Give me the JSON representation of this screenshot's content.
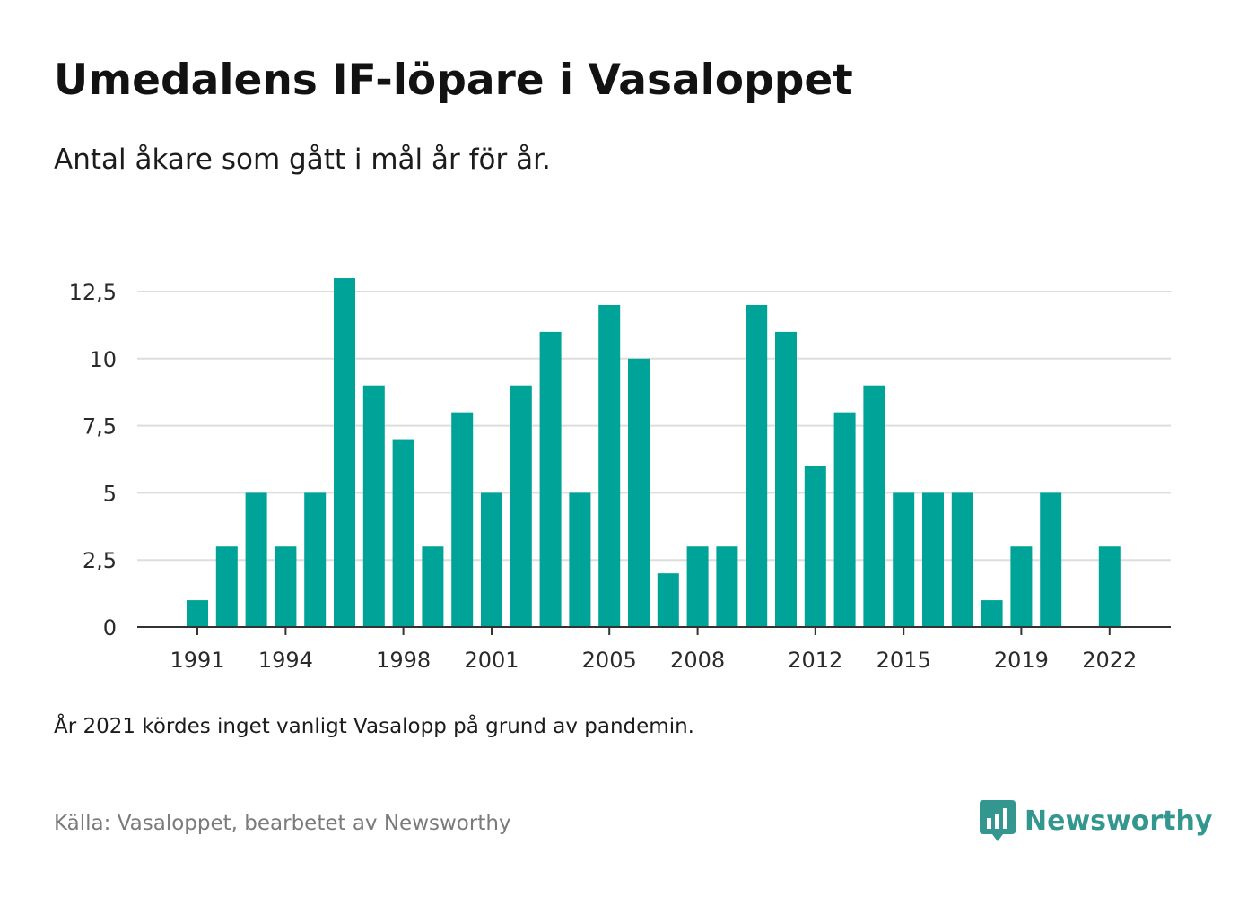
{
  "title": "Umedalens IF-löpare i Vasaloppet",
  "subtitle": "Antal åkare som gått i mål år för år.",
  "note": "År 2021 kördes inget vanligt Vasalopp på grund av pandemin.",
  "source": "Källa: Vasaloppet, bearbetet av Newsworthy",
  "brand": {
    "name": "Newsworthy",
    "icon": "newsworthy-logo-icon",
    "color": "#33978f"
  },
  "chart_data": {
    "type": "bar",
    "title": "Umedalens IF-löpare i Vasaloppet",
    "subtitle": "Antal åkare som gått i mål år för år.",
    "xlabel": "",
    "ylabel": "",
    "x": [
      1990,
      1991,
      1992,
      1993,
      1994,
      1995,
      1996,
      1997,
      1998,
      1999,
      2000,
      2001,
      2002,
      2003,
      2004,
      2005,
      2006,
      2007,
      2008,
      2009,
      2010,
      2011,
      2012,
      2013,
      2014,
      2015,
      2016,
      2017,
      2018,
      2019,
      2020,
      2021,
      2022
    ],
    "values": [
      0,
      1,
      3,
      5,
      3,
      5,
      13,
      9,
      7,
      3,
      8,
      5,
      9,
      11,
      5,
      12,
      10,
      2,
      3,
      3,
      12,
      11,
      6,
      8,
      9,
      5,
      5,
      5,
      1,
      3,
      5,
      0,
      3
    ],
    "x_ticks": [
      "1991",
      "1994",
      "1998",
      "2001",
      "2005",
      "2008",
      "2012",
      "2015",
      "2019",
      "2022"
    ],
    "y_ticks": [
      "0",
      "2,5",
      "5",
      "7,5",
      "10",
      "12,5"
    ],
    "ylim": [
      0,
      13
    ],
    "grid": true,
    "bar_color": "#00a398",
    "grid_color": "#dddddd",
    "axis_color": "#333333"
  }
}
